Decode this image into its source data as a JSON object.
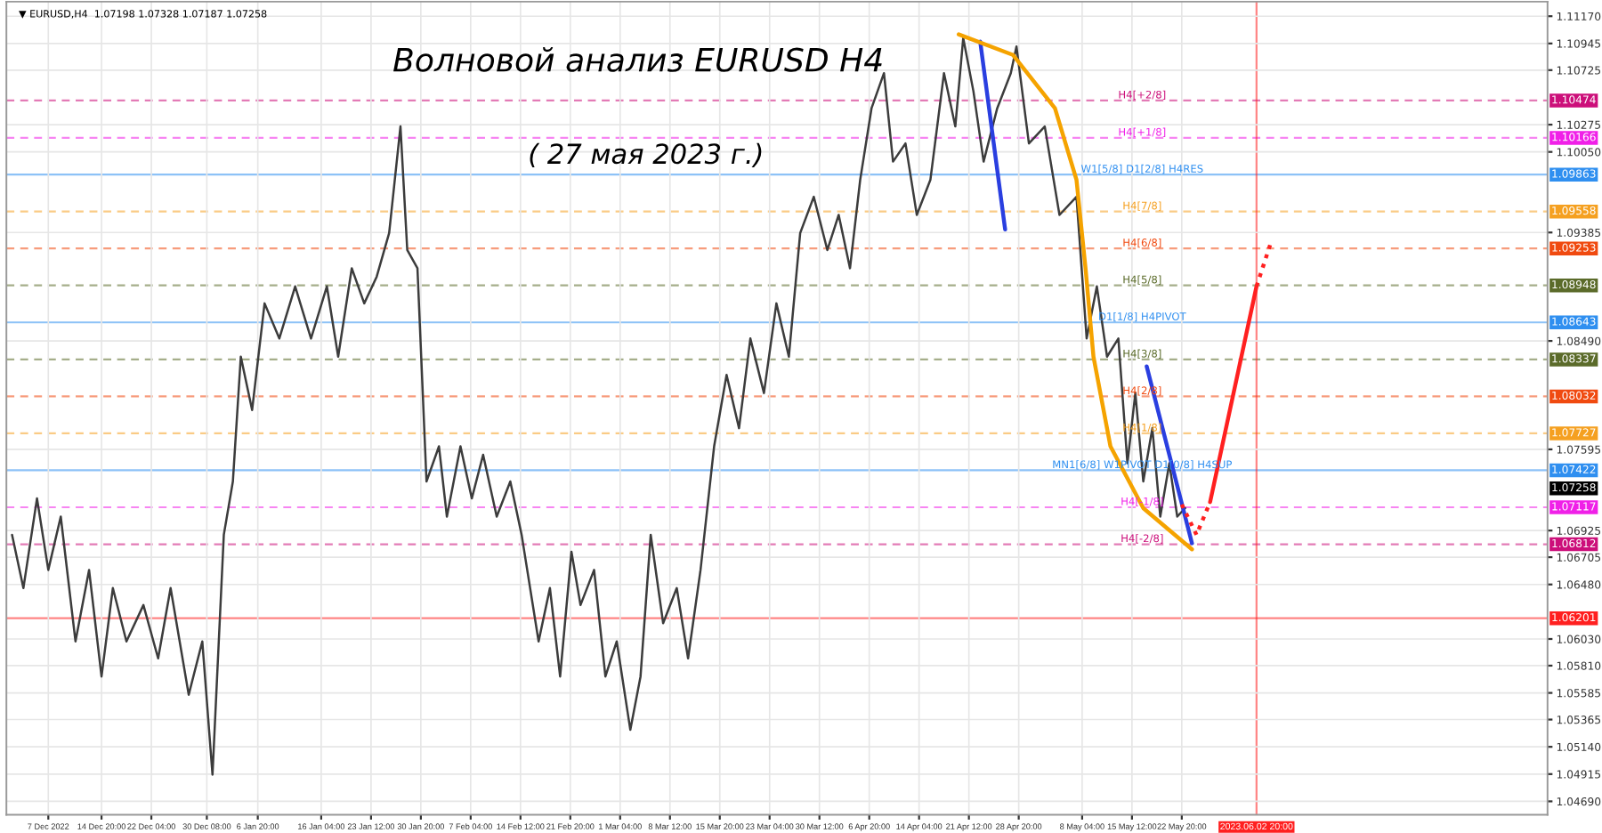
{
  "chart_data": {
    "type": "line",
    "title": "Волновой анализ EURUSD H4",
    "subtitle": "( 27 мая 2023 г.)",
    "annotations": [
      "▼ EURUSD,H4  1.07198 1.07328 1.07187 1.07258",
      {
        "text": "H4[+2/8]",
        "x": "2023-05-17T00:00",
        "y": 1.10474
      },
      {
        "text": "H4[+1/8]",
        "x": "2023-05-17T00:00",
        "y": 1.10166
      },
      {
        "text": "W1[5/8] D1[2/8] H4RES",
        "x": "2023-05-17T00:00",
        "y": 1.09863
      },
      {
        "text": "H4[7/8]",
        "x": "2023-05-17T00:00",
        "y": 1.09558
      },
      {
        "text": "H4[6/8]",
        "x": "2023-05-17T00:00",
        "y": 1.09253
      },
      {
        "text": "H4[5/8]",
        "x": "2023-05-17T00:00",
        "y": 1.08948
      },
      {
        "text": "D1[1/8] H4PIVOT",
        "x": "2023-05-17T00:00",
        "y": 1.08643
      },
      {
        "text": "H4[3/8]",
        "x": "2023-05-17T00:00",
        "y": 1.08337
      },
      {
        "text": "H4[2/8]",
        "x": "2023-05-17T00:00",
        "y": 1.08032
      },
      {
        "text": "H4[1/8]",
        "x": "2023-05-17T00:00",
        "y": 1.07727
      },
      {
        "text": "MN1[6/8] W1PIVOT D1[0/8] H4SUP",
        "x": "2023-05-17T00:00",
        "y": 1.07422
      },
      {
        "text": "H4[-1/8]",
        "x": "2023-05-17T00:00",
        "y": 1.07117
      },
      {
        "text": "H4[-2/8]",
        "x": "2023-05-17T00:00",
        "y": 1.06812
      },
      "1.07258"
    ],
    "xlim": [
      "2022-11-30T20:00",
      "2023-07-15T16:00"
    ],
    "ylim": [
      1.0458,
      1.1129
    ],
    "xticks": [
      {
        "value": "2022-12-07T00:00",
        "label": "7 Dec 2022"
      },
      {
        "value": "2022-12-14T20:00",
        "label": "14 Dec 20:00"
      },
      {
        "value": "2022-12-22T04:00",
        "label": "22 Dec 04:00"
      },
      {
        "value": "2022-12-30T08:00",
        "label": "30 Dec 08:00"
      },
      {
        "value": "2023-01-06T20:00",
        "label": "6 Jan 20:00"
      },
      {
        "value": "2023-01-16T04:00",
        "label": "16 Jan 04:00"
      },
      {
        "value": "2023-01-23T12:00",
        "label": "23 Jan 12:00"
      },
      {
        "value": "2023-01-30T20:00",
        "label": "30 Jan 20:00"
      },
      {
        "value": "2023-02-07T04:00",
        "label": "7 Feb 04:00"
      },
      {
        "value": "2023-02-14T12:00",
        "label": "14 Feb 12:00"
      },
      {
        "value": "2023-02-21T20:00",
        "label": "21 Feb 20:00"
      },
      {
        "value": "2023-03-01T04:00",
        "label": "1 Mar 04:00"
      },
      {
        "value": "2023-03-08T12:00",
        "label": "8 Mar 12:00"
      },
      {
        "value": "2023-03-15T20:00",
        "label": "15 Mar 20:00"
      },
      {
        "value": "2023-03-23T04:00",
        "label": "23 Mar 04:00"
      },
      {
        "value": "2023-03-30T12:00",
        "label": "30 Mar 12:00"
      },
      {
        "value": "2023-04-06T20:00",
        "label": "6 Apr 20:00"
      },
      {
        "value": "2023-04-14T04:00",
        "label": "14 Apr 04:00"
      },
      {
        "value": "2023-04-21T12:00",
        "label": "21 Apr 12:00"
      },
      {
        "value": "2023-04-28T20:00",
        "label": "28 Apr 20:00"
      },
      {
        "value": "2023-05-08T04:00",
        "label": "8 May 04:00"
      },
      {
        "value": "2023-05-15T12:00",
        "label": "15 May 12:00"
      },
      {
        "value": "2023-05-22T20:00",
        "label": "22 May 20:00"
      }
    ],
    "yticks": [
      {
        "value": 1.1117,
        "label": "1.11170"
      },
      1.10945,
      1.10725,
      1.10275,
      {
        "value": 1.1005,
        "label": "1.10050"
      },
      1.09385,
      {
        "value": 1.0849,
        "label": "1.08490"
      },
      1.07595,
      1.06925,
      1.06705,
      {
        "value": 1.0648,
        "label": "1.06480"
      },
      {
        "value": 1.0603,
        "label": "1.06030"
      },
      {
        "value": 1.0581,
        "label": "1.05810"
      },
      1.05585,
      1.05365,
      {
        "value": 1.0514,
        "label": "1.05140"
      },
      1.04915,
      {
        "value": 1.0469,
        "label": "1.04690"
      }
    ],
    "grid": true,
    "series": [
      {
        "color": "#3c3c3c",
        "line_style": "solid",
        "x": [
          "2022-12-01T16:00",
          "2022-12-03T08:00",
          "2022-12-05T08:00",
          "2022-12-07T00:00",
          "2022-12-08T20:00",
          "2022-12-11T00:00",
          "2022-12-13T00:00",
          "2022-12-14T20:00",
          "2022-12-16T12:00",
          "2022-12-18T12:00",
          "2022-12-21T00:00",
          "2022-12-23T04:00",
          "2022-12-25T00:00",
          "2022-12-27T16:00",
          "2022-12-29T16:00",
          "2022-12-31T04:00",
          "2023-01-01T20:00",
          "2023-01-03T04:00",
          "2023-01-04T08:00",
          "2023-01-06T00:00",
          "2023-01-07T20:00",
          "2023-01-10T00:00",
          "2023-01-12T08:00",
          "2023-01-14T16:00",
          "2023-01-17T00:00",
          "2023-01-18T16:00",
          "2023-01-20T16:00",
          "2023-01-22T12:00",
          "2023-01-24T08:00",
          "2023-01-26T04:00",
          "2023-01-27T20:00",
          "2023-01-28T20:00",
          "2023-01-30T08:00",
          "2023-01-31T16:00",
          "2023-02-02T12:00",
          "2023-02-03T16:00",
          "2023-02-05T16:00",
          "2023-02-07T08:00",
          "2023-02-09T00:00",
          "2023-02-11T00:00",
          "2023-02-13T00:00",
          "2023-02-14T16:00",
          "2023-02-17T04:00",
          "2023-02-18T20:00",
          "2023-02-20T08:00",
          "2023-02-22T00:00",
          "2023-02-23T08:00",
          "2023-02-25T08:00",
          "2023-02-27T00:00",
          "2023-02-28T16:00",
          "2023-03-02T16:00",
          "2023-03-04T04:00",
          "2023-03-05T16:00",
          "2023-03-07T12:00",
          "2023-03-09T12:00",
          "2023-03-11T04:00",
          "2023-03-13T00:00",
          "2023-03-15T00:00",
          "2023-03-16T20:00",
          "2023-03-18T16:00",
          "2023-03-20T08:00",
          "2023-03-22T08:00",
          "2023-03-24T04:00",
          "2023-03-26T00:00",
          "2023-03-27T16:00",
          "2023-03-29T16:00",
          "2023-03-31T16:00",
          "2023-04-02T08:00",
          "2023-04-04T00:00",
          "2023-04-05T12:00",
          "2023-04-07T04:00",
          "2023-04-09T00:00",
          "2023-04-10T08:00",
          "2023-04-12T04:00",
          "2023-04-13T20:00",
          "2023-04-15T20:00",
          "2023-04-17T20:00",
          "2023-04-19T12:00",
          "2023-04-20T16:00",
          "2023-04-22T04:00",
          "2023-04-23T16:00",
          "2023-04-25T16:00",
          "2023-04-27T16:00",
          "2023-04-28T12:00",
          "2023-04-30T08:00",
          "2023-05-02T16:00",
          "2023-05-04T20:00",
          "2023-05-07T08:00",
          "2023-05-08T20:00",
          "2023-05-10T08:00",
          "2023-05-11T20:00",
          "2023-05-13T12:00",
          "2023-05-14T20:00",
          "2023-05-16T00:00",
          "2023-05-17T04:00",
          "2023-05-18T12:00",
          "2023-05-19T16:00",
          "2023-05-21T00:00",
          "2023-05-22T04:00",
          "2023-05-23T08:00"
        ],
        "values": [
          1.0689,
          1.0645,
          1.0719,
          1.066,
          1.0704,
          1.0601,
          1.066,
          1.0572,
          1.0645,
          1.0601,
          1.0631,
          1.0587,
          1.0645,
          1.0557,
          1.0601,
          1.0491,
          1.0689,
          1.0733,
          1.0836,
          1.0792,
          1.088,
          1.0851,
          1.0894,
          1.0851,
          1.0894,
          1.0836,
          1.0909,
          1.088,
          1.0902,
          1.0938,
          1.1026,
          1.0924,
          1.0909,
          1.0733,
          1.0762,
          1.0704,
          1.0762,
          1.0719,
          1.0755,
          1.0704,
          1.0733,
          1.0689,
          1.0601,
          1.0645,
          1.0572,
          1.0675,
          1.0631,
          1.066,
          1.0572,
          1.0601,
          1.0528,
          1.0572,
          1.0689,
          1.0616,
          1.0645,
          1.0587,
          1.066,
          1.0762,
          1.0821,
          1.0777,
          1.0851,
          1.0806,
          1.088,
          1.0836,
          1.0938,
          1.0968,
          1.0924,
          1.0953,
          1.0909,
          1.0982,
          1.1041,
          1.107,
          1.0997,
          1.1012,
          1.0953,
          1.0982,
          1.107,
          1.1026,
          1.1099,
          1.1055,
          1.0997,
          1.1041,
          1.107,
          1.1092,
          1.1012,
          1.1026,
          1.0953,
          1.0968,
          1.0851,
          1.0894,
          1.0836,
          1.0851,
          1.0748,
          1.0806,
          1.0733,
          1.0777,
          1.0704,
          1.0748,
          1.0704,
          1.0711
        ]
      },
      {
        "color": "#2a3fe0",
        "line_style": "solid",
        "x": [
          "2023-04-23T04:00",
          "2023-04-26T20:00"
        ],
        "values": [
          1.1096,
          1.0941
        ]
      },
      {
        "color": "#2a3fe0",
        "line_style": "solid",
        "x": [
          "2023-05-17T16:00",
          "2023-05-24T08:00"
        ],
        "values": [
          1.0828,
          1.0682
        ]
      },
      {
        "color": "#f5a300",
        "line_style": "solid",
        "x": [
          "2023-04-20T00:00",
          "2023-04-28T00:00",
          "2023-05-04T04:00",
          "2023-05-07T08:00",
          "2023-05-08T16:00",
          "2023-05-09T20:00",
          "2023-05-12T08:00",
          "2023-05-17T04:00",
          "2023-05-24T08:00"
        ],
        "values": [
          1.1102,
          1.1085,
          1.1041,
          1.0982,
          1.0909,
          1.0836,
          1.0762,
          1.0711,
          1.0677
        ]
      },
      {
        "color": "#ff2020",
        "line_style": "dotted",
        "x": [
          "2023-05-22T20:00",
          "2023-05-25T00:00",
          "2023-05-27T00:00"
        ],
        "values": [
          1.0714,
          1.0689,
          1.0716
        ]
      },
      {
        "color": "#ff2020",
        "line_style": "solid",
        "x": [
          "2023-05-27T00:00",
          "2023-06-02T20:00"
        ],
        "values": [
          1.0716,
          1.0894
        ]
      },
      {
        "color": "#ff2020",
        "line_style": "dotted",
        "x": [
          "2023-06-02T20:00",
          "2023-06-05T00:00"
        ],
        "values": [
          1.0894,
          1.0931
        ]
      }
    ],
    "ref_lines": [
      {
        "axis": "y",
        "value": 1.10474,
        "label": "1.10474",
        "color": "#cc0f7a",
        "line_style": "dashed"
      },
      {
        "axis": "y",
        "value": 1.10166,
        "label": "1.10166",
        "color": "#f020e8",
        "line_style": "dashed"
      },
      {
        "axis": "y",
        "value": 1.09863,
        "label": "1.09863",
        "color": "#2f8ff0",
        "line_style": "solid"
      },
      {
        "axis": "y",
        "value": 1.09558,
        "label": "1.09558",
        "color": "#f5a020",
        "line_style": "dashed"
      },
      {
        "axis": "y",
        "value": 1.09253,
        "label": "1.09253",
        "color": "#f04a10",
        "line_style": "dashed"
      },
      {
        "axis": "y",
        "value": 1.08948,
        "label": "1.08948",
        "color": "#5b6b2a",
        "line_style": "dashed"
      },
      {
        "axis": "y",
        "value": 1.08643,
        "label": "1.08643",
        "color": "#2f8ff0",
        "line_style": "solid"
      },
      {
        "axis": "y",
        "value": 1.08337,
        "label": "1.08337",
        "color": "#5b6b2a",
        "line_style": "dashed"
      },
      {
        "axis": "y",
        "value": 1.08032,
        "label": "1.08032",
        "color": "#f04a10",
        "line_style": "dashed"
      },
      {
        "axis": "y",
        "value": 1.07727,
        "label": "1.07727",
        "color": "#f5a020",
        "line_style": "dashed"
      },
      {
        "axis": "y",
        "value": 1.07422,
        "label": "1.07422",
        "color": "#2f8ff0",
        "line_style": "solid"
      },
      {
        "axis": "y",
        "value": 1.07117,
        "label": "1.07117",
        "color": "#f020e8",
        "line_style": "dashed"
      },
      {
        "axis": "y",
        "value": 1.06812,
        "label": "1.06812",
        "color": "#cc0f7a",
        "line_style": "dashed"
      },
      {
        "axis": "y",
        "value": 1.06201,
        "label": "1.06201",
        "color": "#ff2020",
        "line_style": "solid"
      },
      {
        "axis": "x",
        "value": "2023-06-02T20:00",
        "label": "2023.06.02 20:00",
        "color": "#ff2020",
        "line_style": "solid"
      }
    ]
  }
}
